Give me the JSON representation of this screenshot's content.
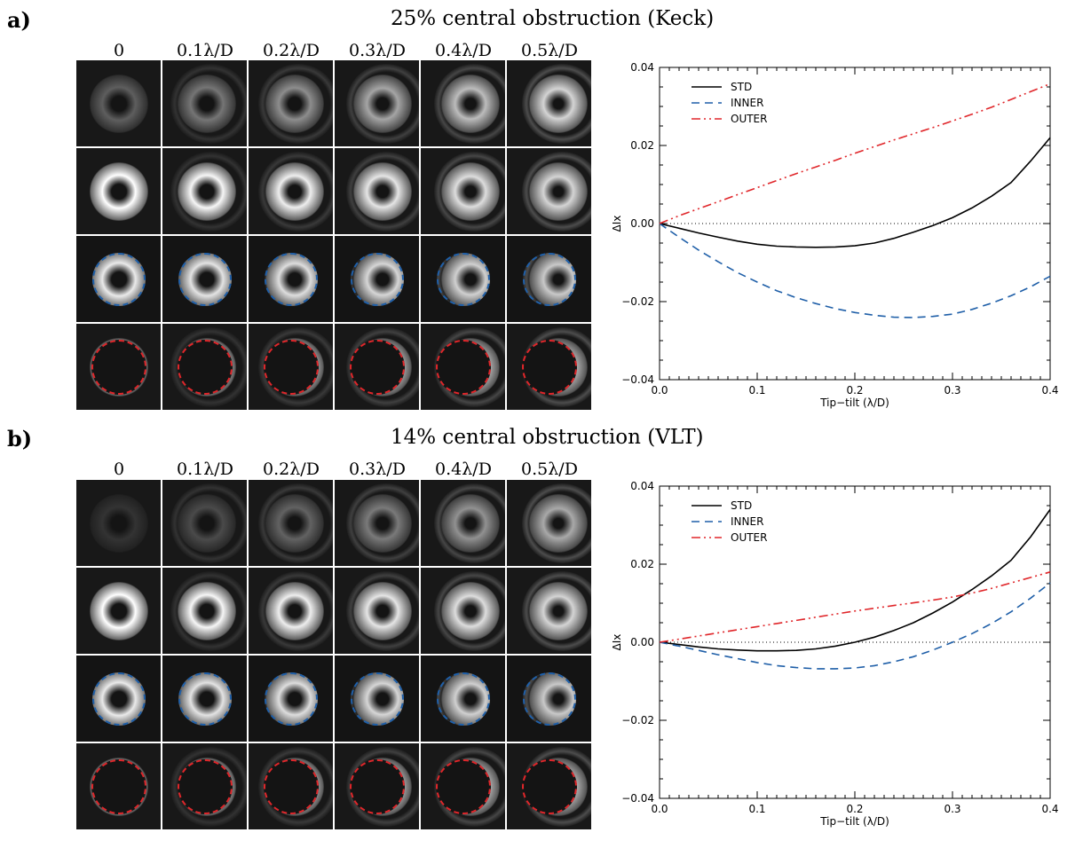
{
  "panels": [
    {
      "tag": "a)",
      "title": "25% central obstruction (Keck)",
      "columns": [
        "0",
        "0.1λ/D",
        "0.2λ/D",
        "0.3λ/D",
        "0.4λ/D",
        "0.5λ/D"
      ],
      "colors": {
        "std": "#000000",
        "inner": "#1f5fa8",
        "outer": "#e0262a"
      }
    },
    {
      "tag": "b)",
      "title": "14% central obstruction (VLT)",
      "columns": [
        "0",
        "0.1λ/D",
        "0.2λ/D",
        "0.3λ/D",
        "0.4λ/D",
        "0.5λ/D"
      ],
      "colors": {
        "std": "#000000",
        "inner": "#1f5fa8",
        "outer": "#e0262a"
      }
    }
  ],
  "chart_data": [
    {
      "type": "line",
      "xlabel": "Tip−tilt (λ/D)",
      "ylabel": "ΔIx",
      "xlim": [
        0.0,
        0.4
      ],
      "ylim": [
        -0.04,
        0.04
      ],
      "xticks": [
        "0.0",
        "0.1",
        "0.2",
        "0.3",
        "0.4"
      ],
      "yticks": [
        "−0.04",
        "−0.02",
        "0.00",
        "0.02",
        "0.04"
      ],
      "legend_position": "top-left",
      "x": [
        0.0,
        0.02,
        0.04,
        0.06,
        0.08,
        0.1,
        0.12,
        0.14,
        0.16,
        0.18,
        0.2,
        0.22,
        0.24,
        0.26,
        0.28,
        0.3,
        0.32,
        0.34,
        0.36,
        0.38,
        0.4
      ],
      "series": [
        {
          "name": "STD",
          "style": "solid",
          "color": "#000000",
          "values": [
            0.0,
            -0.0012,
            -0.0024,
            -0.0035,
            -0.0045,
            -0.0053,
            -0.0058,
            -0.006,
            -0.0061,
            -0.006,
            -0.0057,
            -0.005,
            -0.0038,
            -0.0022,
            -0.0005,
            0.0015,
            0.004,
            0.007,
            0.0105,
            0.016,
            0.022
          ]
        },
        {
          "name": "INNER",
          "style": "dashed",
          "color": "#1f5fa8",
          "values": [
            0.0,
            -0.0035,
            -0.0068,
            -0.0098,
            -0.0126,
            -0.015,
            -0.0172,
            -0.019,
            -0.0205,
            -0.0218,
            -0.0228,
            -0.0235,
            -0.024,
            -0.0241,
            -0.0238,
            -0.0232,
            -0.022,
            -0.0204,
            -0.0185,
            -0.0162,
            -0.0135
          ]
        },
        {
          "name": "OUTER",
          "style": "dash-dot-dot",
          "color": "#e0262a",
          "values": [
            0.0,
            0.002,
            0.0038,
            0.0056,
            0.0074,
            0.0092,
            0.011,
            0.0128,
            0.0145,
            0.0162,
            0.018,
            0.0197,
            0.0214,
            0.023,
            0.0246,
            0.0263,
            0.028,
            0.0298,
            0.0318,
            0.0338,
            0.0358
          ]
        }
      ]
    },
    {
      "type": "line",
      "xlabel": "Tip−tilt (λ/D)",
      "ylabel": "ΔIx",
      "xlim": [
        0.0,
        0.4
      ],
      "ylim": [
        -0.04,
        0.04
      ],
      "xticks": [
        "0.0",
        "0.1",
        "0.2",
        "0.3",
        "0.4"
      ],
      "yticks": [
        "−0.04",
        "−0.02",
        "0.00",
        "0.02",
        "0.04"
      ],
      "legend_position": "top-left",
      "x": [
        0.0,
        0.02,
        0.04,
        0.06,
        0.08,
        0.1,
        0.12,
        0.14,
        0.16,
        0.18,
        0.2,
        0.22,
        0.24,
        0.26,
        0.28,
        0.3,
        0.32,
        0.34,
        0.36,
        0.38,
        0.4
      ],
      "series": [
        {
          "name": "STD",
          "style": "solid",
          "color": "#000000",
          "values": [
            0.0,
            -0.0006,
            -0.0012,
            -0.0017,
            -0.002,
            -0.0022,
            -0.0022,
            -0.0021,
            -0.0017,
            -0.001,
            0.0,
            0.0013,
            0.003,
            0.005,
            0.0075,
            0.0103,
            0.0135,
            0.017,
            0.021,
            0.027,
            0.034
          ]
        },
        {
          "name": "INNER",
          "style": "dashed",
          "color": "#1f5fa8",
          "values": [
            0.0,
            -0.001,
            -0.0021,
            -0.0032,
            -0.0042,
            -0.0052,
            -0.006,
            -0.0065,
            -0.0068,
            -0.0068,
            -0.0066,
            -0.006,
            -0.005,
            -0.0037,
            -0.002,
            0.0,
            0.0022,
            0.0048,
            0.0078,
            0.0113,
            0.0152
          ]
        },
        {
          "name": "OUTER",
          "style": "dash-dot-dot",
          "color": "#e0262a",
          "values": [
            0.0,
            0.0008,
            0.0016,
            0.0024,
            0.0032,
            0.004,
            0.0048,
            0.0056,
            0.0064,
            0.0072,
            0.008,
            0.0087,
            0.0094,
            0.0101,
            0.0108,
            0.0116,
            0.0126,
            0.0138,
            0.0152,
            0.0166,
            0.018
          ]
        }
      ]
    }
  ]
}
